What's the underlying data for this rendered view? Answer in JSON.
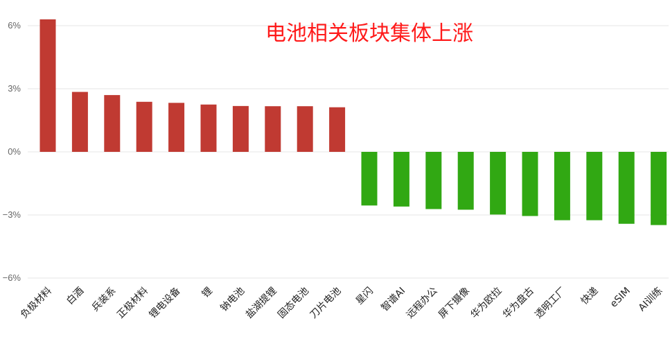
{
  "chart_data": {
    "type": "bar",
    "title": "电池相关板块集体上涨",
    "xlabel": "",
    "ylabel": "",
    "ylim": [
      -6,
      6
    ],
    "yticks": [
      6,
      3,
      0,
      -3,
      -6
    ],
    "ytick_labels": [
      "6%",
      "3%",
      "0%",
      "−3%",
      "−6%"
    ],
    "grid": true,
    "categories": [
      "负极材料",
      "白酒",
      "兵装系",
      "正极材料",
      "锂电设备",
      "锂",
      "钠电池",
      "盐湖提锂",
      "固态电池",
      "刀片电池",
      "星闪",
      "智谱AI",
      "远程办公",
      "屏下摄像",
      "华为欧拉",
      "华为盘古",
      "透明工厂",
      "快递",
      "eSIM",
      "AI训练"
    ],
    "values": [
      6.3,
      2.85,
      2.7,
      2.38,
      2.33,
      2.25,
      2.18,
      2.17,
      2.17,
      2.12,
      -2.55,
      -2.6,
      -2.72,
      -2.75,
      -2.98,
      -3.05,
      -3.25,
      -3.25,
      -3.42,
      -3.48
    ],
    "colors": {
      "positive": "#c03a32",
      "negative": "#31a813"
    }
  }
}
